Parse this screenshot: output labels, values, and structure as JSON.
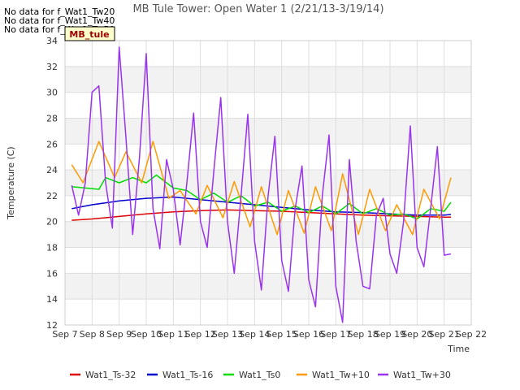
{
  "notes": [
    "No data for f_Wat1_Tw20",
    "No data for f_Wat1_Tw40",
    "No data for f_Wat1_Tw50"
  ],
  "chart_data": {
    "type": "line",
    "title": "MB Tule Tower: Open Water 1 (2/21/13-3/19/14)",
    "xlabel": "Time",
    "ylabel": "Temperature (C)",
    "badge": "MB_tule",
    "ylim": [
      12,
      34
    ],
    "yticks": [
      12,
      14,
      16,
      18,
      20,
      22,
      24,
      26,
      28,
      30,
      32,
      34
    ],
    "xlim": [
      "Sep 7",
      "Sep 22"
    ],
    "xticks": [
      "Sep 7",
      "Sep 8",
      "Sep 9",
      "Sep 10",
      "Sep 11",
      "Sep 12",
      "Sep 13",
      "Sep 14",
      "Sep 15",
      "Sep 16",
      "Sep 17",
      "Sep 18",
      "Sep 19",
      "Sep 20",
      "Sep 21",
      "Sep 22"
    ],
    "grid": true,
    "legend_position": "bottom",
    "series": [
      {
        "name": "Wat1_Ts-32",
        "color": "#dd0000",
        "x": [
          "Sep 7 06:00",
          "Sep 8 00:00",
          "Sep 9 00:00",
          "Sep 10 00:00",
          "Sep 11 00:00",
          "Sep 12 00:00",
          "Sep 13 00:00",
          "Sep 14 00:00",
          "Sep 15 00:00",
          "Sep 16 00:00",
          "Sep 17 00:00",
          "Sep 18 00:00",
          "Sep 19 00:00",
          "Sep 20 00:00",
          "Sep 21 00:00",
          "Sep 21 06:00"
        ],
        "values": [
          20.1,
          20.2,
          20.4,
          20.6,
          20.75,
          20.85,
          20.9,
          20.85,
          20.8,
          20.7,
          20.6,
          20.5,
          20.45,
          20.4,
          20.35,
          20.35
        ]
      },
      {
        "name": "Wat1_Ts-16",
        "color": "#0000cc",
        "x": [
          "Sep 7 06:00",
          "Sep 8 00:00",
          "Sep 9 00:00",
          "Sep 10 00:00",
          "Sep 11 00:00",
          "Sep 12 00:00",
          "Sep 13 00:00",
          "Sep 14 00:00",
          "Sep 15 00:00",
          "Sep 16 00:00",
          "Sep 17 00:00",
          "Sep 18 00:00",
          "Sep 19 00:00",
          "Sep 20 00:00",
          "Sep 21 00:00",
          "Sep 21 06:00"
        ],
        "values": [
          21.0,
          21.3,
          21.6,
          21.8,
          21.9,
          21.7,
          21.5,
          21.3,
          21.1,
          20.9,
          20.75,
          20.7,
          20.6,
          20.5,
          20.5,
          20.55
        ]
      },
      {
        "name": "Wat1_Ts0",
        "color": "#00dd00",
        "x": [
          "Sep 7 06:00",
          "Sep 7 18:00",
          "Sep 8 06:00",
          "Sep 8 12:00",
          "Sep 9 00:00",
          "Sep 9 12:00",
          "Sep 10 00:00",
          "Sep 10 09:00",
          "Sep 11 00:00",
          "Sep 11 12:00",
          "Sep 12 00:00",
          "Sep 12 12:00",
          "Sep 13 00:00",
          "Sep 13 12:00",
          "Sep 14 00:00",
          "Sep 14 12:00",
          "Sep 15 00:00",
          "Sep 15 12:00",
          "Sep 16 00:00",
          "Sep 16 12:00",
          "Sep 17 00:00",
          "Sep 17 12:00",
          "Sep 18 00:00",
          "Sep 18 12:00",
          "Sep 19 00:00",
          "Sep 19 12:00",
          "Sep 20 00:00",
          "Sep 20 12:00",
          "Sep 21 00:00",
          "Sep 21 06:00"
        ],
        "values": [
          22.7,
          22.6,
          22.5,
          23.4,
          23.0,
          23.4,
          23.0,
          23.6,
          22.6,
          22.4,
          21.7,
          22.2,
          21.5,
          22.0,
          21.2,
          21.5,
          20.8,
          21.2,
          20.7,
          21.2,
          20.6,
          21.4,
          20.6,
          21.0,
          20.5,
          20.6,
          20.2,
          21.0,
          20.8,
          21.5
        ]
      },
      {
        "name": "Wat1_Tw+10",
        "color": "#ff9900",
        "x": [
          "Sep 7 06:00",
          "Sep 7 16:00",
          "Sep 8 06:00",
          "Sep 8 20:00",
          "Sep 9 06:00",
          "Sep 9 20:00",
          "Sep 10 06:00",
          "Sep 10 20:00",
          "Sep 11 06:00",
          "Sep 11 20:00",
          "Sep 12 06:00",
          "Sep 12 20:00",
          "Sep 13 06:00",
          "Sep 13 20:00",
          "Sep 14 06:00",
          "Sep 14 20:00",
          "Sep 15 06:00",
          "Sep 15 20:00",
          "Sep 16 06:00",
          "Sep 16 20:00",
          "Sep 17 06:00",
          "Sep 17 20:00",
          "Sep 18 06:00",
          "Sep 18 20:00",
          "Sep 19 06:00",
          "Sep 19 20:00",
          "Sep 20 06:00",
          "Sep 20 20:00",
          "Sep 21 06:00"
        ],
        "values": [
          24.4,
          23.0,
          26.2,
          23.4,
          25.4,
          23.0,
          26.2,
          21.8,
          22.4,
          20.6,
          22.8,
          20.3,
          23.1,
          19.6,
          22.7,
          19.0,
          22.4,
          19.1,
          22.7,
          19.3,
          23.7,
          19.0,
          22.5,
          19.3,
          21.3,
          19.0,
          22.5,
          20.2,
          23.4
        ]
      },
      {
        "name": "Wat1_Tw+30",
        "color": "#9933ee",
        "x": [
          "Sep 7 06:00",
          "Sep 7 12:00",
          "Sep 7 18:00",
          "Sep 8 00:00",
          "Sep 8 06:00",
          "Sep 8 12:00",
          "Sep 8 18:00",
          "Sep 9 00:00",
          "Sep 9 06:00",
          "Sep 9 12:00",
          "Sep 9 18:00",
          "Sep 10 00:00",
          "Sep 10 06:00",
          "Sep 10 12:00",
          "Sep 10 18:00",
          "Sep 11 00:00",
          "Sep 11 06:00",
          "Sep 11 12:00",
          "Sep 11 18:00",
          "Sep 12 00:00",
          "Sep 12 06:00",
          "Sep 12 12:00",
          "Sep 12 18:00",
          "Sep 13 00:00",
          "Sep 13 06:00",
          "Sep 13 12:00",
          "Sep 13 18:00",
          "Sep 14 00:00",
          "Sep 14 06:00",
          "Sep 14 12:00",
          "Sep 14 18:00",
          "Sep 15 00:00",
          "Sep 15 06:00",
          "Sep 15 12:00",
          "Sep 15 18:00",
          "Sep 16 00:00",
          "Sep 16 06:00",
          "Sep 16 12:00",
          "Sep 16 18:00",
          "Sep 17 00:00",
          "Sep 17 06:00",
          "Sep 17 12:00",
          "Sep 17 18:00",
          "Sep 18 00:00",
          "Sep 18 06:00",
          "Sep 18 12:00",
          "Sep 18 18:00",
          "Sep 19 00:00",
          "Sep 19 06:00",
          "Sep 19 12:00",
          "Sep 19 18:00",
          "Sep 20 00:00",
          "Sep 20 06:00",
          "Sep 20 12:00",
          "Sep 20 18:00",
          "Sep 21 00:00",
          "Sep 21 06:00"
        ],
        "values": [
          22.8,
          20.5,
          23.0,
          30.0,
          30.5,
          23.0,
          19.5,
          33.5,
          26.5,
          19.0,
          25.0,
          33.0,
          21.0,
          17.9,
          24.8,
          22.5,
          18.2,
          23.0,
          28.4,
          20.0,
          18.0,
          24.0,
          29.6,
          20.0,
          16.0,
          22.0,
          28.3,
          18.5,
          14.7,
          22.0,
          26.6,
          17.0,
          14.6,
          21.0,
          24.3,
          15.5,
          13.4,
          22.0,
          26.7,
          15.0,
          12.2,
          24.8,
          18.5,
          15.0,
          14.8,
          20.5,
          21.8,
          17.5,
          16.0,
          20.0,
          27.4,
          18.0,
          16.5,
          21.0,
          25.8,
          17.4,
          17.5
        ]
      }
    ]
  }
}
